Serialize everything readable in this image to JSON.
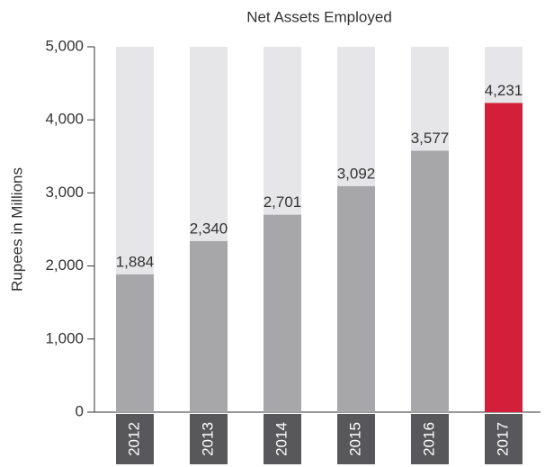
{
  "chart_data": {
    "type": "bar",
    "title": "Net Assets Employed",
    "y_label": "Rupees in Millions",
    "categories": [
      "2012",
      "2013",
      "2014",
      "2015",
      "2016",
      "2017"
    ],
    "values": [
      1884,
      2340,
      2701,
      3092,
      3577,
      4231
    ],
    "value_labels": [
      "1,884",
      "2,340",
      "2,701",
      "3,092",
      "3,577",
      "4,231"
    ],
    "colors": [
      "#a7a7a9",
      "#a7a7a9",
      "#a7a7a9",
      "#a7a7a9",
      "#a7a7a9",
      "#d41f3a"
    ],
    "track_color": "#e6e6e8",
    "ylim": [
      0,
      5000
    ],
    "yticks": [
      0,
      {
        "value": 1000,
        "label": "1,000"
      },
      {
        "value": 2000,
        "label": "2,000"
      },
      {
        "value": 3000,
        "label": "3,000"
      },
      {
        "value": 4000,
        "label": "4,000"
      },
      {
        "value": 5000,
        "label": "5,000"
      }
    ]
  }
}
